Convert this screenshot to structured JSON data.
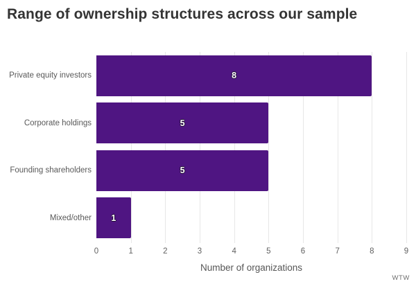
{
  "title": "Range of ownership structures across our sample",
  "watermark": "WTW",
  "colors": {
    "bar": "#4F1582",
    "title_text": "#343434",
    "category_text": "#595959",
    "tick_text": "#616161",
    "grid": "#e7e7e7",
    "value_text": "#ffffff"
  },
  "chart_data": {
    "type": "bar",
    "orientation": "horizontal",
    "title": "Range of ownership structures across our sample",
    "categories": [
      "Private equity investors",
      "Corporate holdings",
      "Founding shareholders",
      "Mixed/other"
    ],
    "values": [
      8,
      5,
      5,
      1
    ],
    "xlabel": "Number of organizations",
    "ylabel": "",
    "xlim": [
      0,
      9
    ],
    "xticks": [
      0,
      1,
      2,
      3,
      4,
      5,
      6,
      7,
      8,
      9
    ],
    "grid": true,
    "legend": false,
    "bar_color": "#4F1582",
    "value_labels_position": "center"
  }
}
